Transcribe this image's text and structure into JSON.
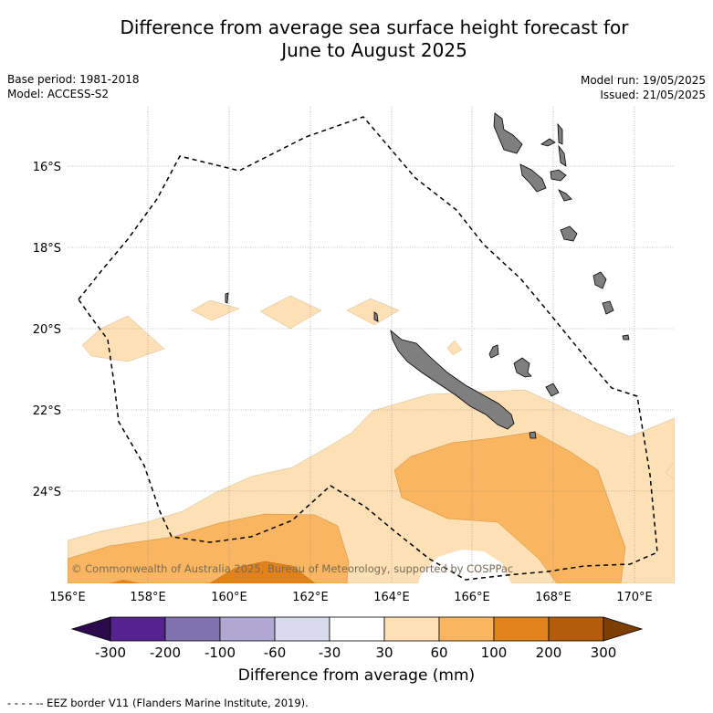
{
  "title_line1": "Difference from average sea surface height forecast for",
  "title_line2": "June to August 2025",
  "meta": {
    "base_period": "Base period: 1981-2018",
    "model": "Model: ACCESS-S2",
    "model_run": "Model run: 19/05/2025",
    "issued": "Issued: 21/05/2025"
  },
  "map": {
    "lon_ticks": [
      "156°E",
      "158°E",
      "160°E",
      "162°E",
      "164°E",
      "166°E",
      "168°E",
      "170°E"
    ],
    "lat_ticks": [
      "16°S",
      "18°S",
      "20°S",
      "22°S",
      "24°S"
    ],
    "copyright": "© Commonwealth of Australia 2025, Bureau of Meteorology, supported by COSPPac"
  },
  "colorbar": {
    "ticks": [
      "-300",
      "-200",
      "-100",
      "-60",
      "-30",
      "30",
      "60",
      "100",
      "200",
      "300"
    ],
    "colors": [
      "#2d0a4e",
      "#56228e",
      "#7f72ae",
      "#b0a8d2",
      "#d9d9ec",
      "#ffffff",
      "#fde0b5",
      "#f9b55f",
      "#e2821b",
      "#b25c0c",
      "#7d3e04"
    ],
    "label": "Difference from average (mm)"
  },
  "legend": "- -  - -  -- EEZ border V11 (Flanders Marine Institute, 2019)."
}
